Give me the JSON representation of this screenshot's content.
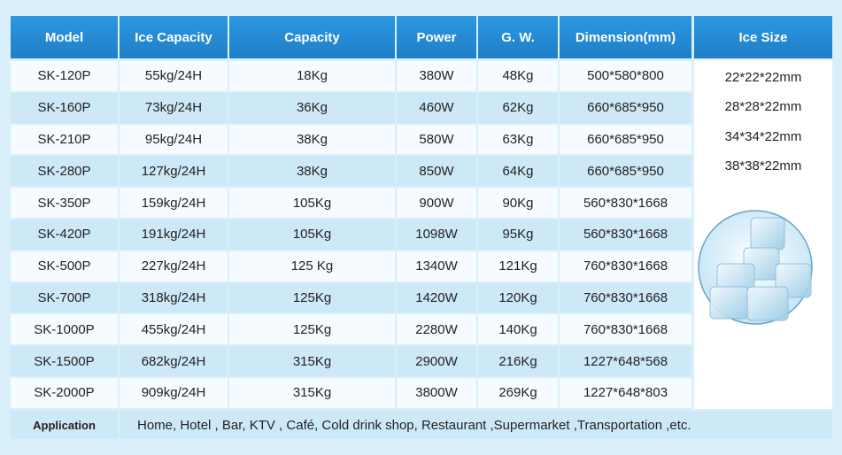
{
  "table": {
    "header": [
      "Model",
      "Ice Capacity",
      "Capacity",
      "Power",
      "G. W.",
      "Dimension(mm)",
      "Ice Size"
    ],
    "rows": [
      [
        "SK-120P",
        "55kg/24H",
        "18Kg",
        "380W",
        "48Kg",
        "500*580*800"
      ],
      [
        "SK-160P",
        "73kg/24H",
        "36Kg",
        "460W",
        "62Kg",
        "660*685*950"
      ],
      [
        "SK-210P",
        "95kg/24H",
        "38Kg",
        "580W",
        "63Kg",
        "660*685*950"
      ],
      [
        "SK-280P",
        "127kg/24H",
        "38Kg",
        "850W",
        "64Kg",
        "660*685*950"
      ],
      [
        "SK-350P",
        "159kg/24H",
        "105Kg",
        "900W",
        "90Kg",
        "560*830*1668"
      ],
      [
        "SK-420P",
        "191kg/24H",
        "105Kg",
        "1098W",
        "95Kg",
        "560*830*1668"
      ],
      [
        "SK-500P",
        "227kg/24H",
        "125 Kg",
        "1340W",
        "121Kg",
        "760*830*1668"
      ],
      [
        "SK-700P",
        "318kg/24H",
        "125Kg",
        "1420W",
        "120Kg",
        "760*830*1668"
      ],
      [
        "SK-1000P",
        "455kg/24H",
        "125Kg",
        "2280W",
        "140Kg",
        "760*830*1668"
      ],
      [
        "SK-1500P",
        "682kg/24H",
        "315Kg",
        "2900W",
        "216Kg",
        "1227*648*568"
      ],
      [
        "SK-2000P",
        "909kg/24H",
        "315Kg",
        "3800W",
        "269Kg",
        "1227*648*803"
      ]
    ],
    "ice_sizes": [
      "22*22*22mm",
      "28*28*22mm",
      "34*34*22mm",
      "38*38*22mm"
    ],
    "application": {
      "label": "Application",
      "text": "Home, Hotel , Bar, KTV , Café, Cold drink shop, Restaurant ,Supermarket ,Transportation ,etc."
    }
  }
}
